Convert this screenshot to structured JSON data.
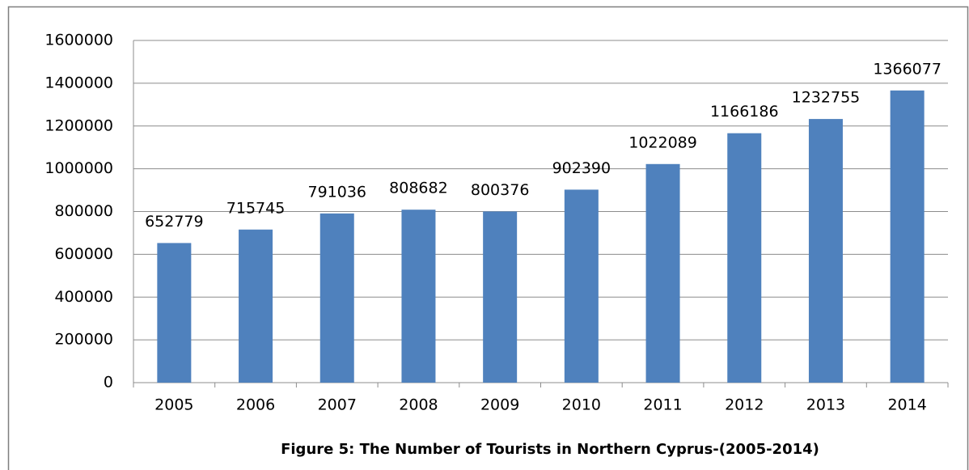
{
  "chart_data": {
    "type": "bar",
    "title": "Figure 5: The Number of Tourists in Northern Cyprus-(2005-2014)",
    "categories": [
      "2005",
      "2006",
      "2007",
      "2008",
      "2009",
      "2010",
      "2011",
      "2012",
      "2013",
      "2014"
    ],
    "values": [
      652779,
      715745,
      791036,
      808682,
      800376,
      902390,
      1022089,
      1166186,
      1232755,
      1366077
    ],
    "color": "#4f81bd",
    "ylim": [
      0,
      1600000
    ],
    "yticks": [
      0,
      200000,
      400000,
      600000,
      800000,
      1000000,
      1200000,
      1400000,
      1600000
    ],
    "grid": true
  }
}
